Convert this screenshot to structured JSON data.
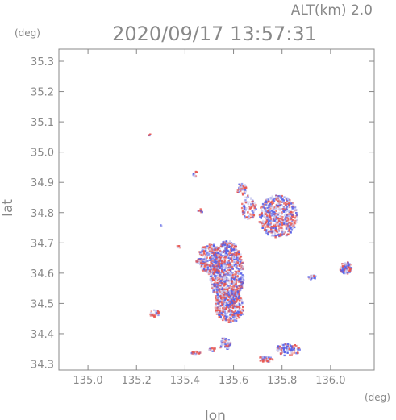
{
  "chart_data": {
    "type": "scatter",
    "title": "2020/09/17 13:57:31",
    "subtitle": "ALT(km) 2.0",
    "xlabel": "lon",
    "ylabel": "lat",
    "xunit": "(deg)",
    "yunit": "(deg)",
    "xlim": [
      134.88,
      136.18
    ],
    "ylim": [
      34.28,
      35.34
    ],
    "xticks": [
      {
        "value": 135.0,
        "label": "135.0"
      },
      {
        "value": 135.2,
        "label": "135.2"
      },
      {
        "value": 135.4,
        "label": "135.4"
      },
      {
        "value": 135.6,
        "label": "135.6"
      },
      {
        "value": 135.8,
        "label": "135.8"
      },
      {
        "value": 136.0,
        "label": "136.0"
      }
    ],
    "yticks": [
      {
        "value": 34.3,
        "label": "34.3"
      },
      {
        "value": 34.4,
        "label": "34.4"
      },
      {
        "value": 34.5,
        "label": "34.5"
      },
      {
        "value": 34.6,
        "label": "34.6"
      },
      {
        "value": 34.7,
        "label": "34.7"
      },
      {
        "value": 34.8,
        "label": "34.8"
      },
      {
        "value": 34.9,
        "label": "34.9"
      },
      {
        "value": 35.0,
        "label": "35.0"
      },
      {
        "value": 35.1,
        "label": "35.1"
      },
      {
        "value": 35.2,
        "label": "35.2"
      },
      {
        "value": 35.3,
        "label": "35.3"
      }
    ],
    "grid": false,
    "colors": {
      "positive": "#e8554f",
      "negative": "#5560e8",
      "neutral": "#c8c8ee",
      "axis": "#888888"
    },
    "clusters": [
      {
        "lon": 135.57,
        "lat": 34.6,
        "rlon": 0.07,
        "rlat": 0.11,
        "n": 900
      },
      {
        "lon": 135.5,
        "lat": 34.65,
        "rlon": 0.05,
        "rlat": 0.05,
        "n": 250
      },
      {
        "lon": 135.58,
        "lat": 34.49,
        "rlon": 0.06,
        "rlat": 0.05,
        "n": 300
      },
      {
        "lon": 135.78,
        "lat": 34.79,
        "rlon": 0.08,
        "rlat": 0.07,
        "n": 550
      },
      {
        "lon": 135.66,
        "lat": 34.82,
        "rlon": 0.03,
        "rlat": 0.04,
        "n": 80
      },
      {
        "lon": 135.63,
        "lat": 34.88,
        "rlon": 0.02,
        "rlat": 0.02,
        "n": 40
      },
      {
        "lon": 135.82,
        "lat": 34.35,
        "rlon": 0.05,
        "rlat": 0.02,
        "n": 90
      },
      {
        "lon": 135.73,
        "lat": 34.32,
        "rlon": 0.03,
        "rlat": 0.01,
        "n": 40
      },
      {
        "lon": 136.06,
        "lat": 34.62,
        "rlon": 0.025,
        "rlat": 0.02,
        "n": 70
      },
      {
        "lon": 135.92,
        "lat": 34.59,
        "rlon": 0.015,
        "rlat": 0.008,
        "n": 20
      },
      {
        "lon": 135.56,
        "lat": 34.37,
        "rlon": 0.025,
        "rlat": 0.02,
        "n": 50
      },
      {
        "lon": 135.27,
        "lat": 34.47,
        "rlon": 0.02,
        "rlat": 0.012,
        "n": 30
      },
      {
        "lon": 135.44,
        "lat": 34.93,
        "rlon": 0.01,
        "rlat": 0.01,
        "n": 12
      },
      {
        "lon": 135.46,
        "lat": 34.64,
        "rlon": 0.02,
        "rlat": 0.01,
        "n": 30
      },
      {
        "lon": 135.44,
        "lat": 34.34,
        "rlon": 0.02,
        "rlat": 0.005,
        "n": 15
      },
      {
        "lon": 135.51,
        "lat": 34.35,
        "rlon": 0.015,
        "rlat": 0.008,
        "n": 15
      },
      {
        "lon": 135.46,
        "lat": 34.81,
        "rlon": 0.01,
        "rlat": 0.01,
        "n": 10
      },
      {
        "lon": 135.25,
        "lat": 35.06,
        "rlon": 0.005,
        "rlat": 0.004,
        "n": 4
      },
      {
        "lon": 135.37,
        "lat": 34.69,
        "rlon": 0.008,
        "rlat": 0.006,
        "n": 6
      },
      {
        "lon": 135.3,
        "lat": 34.76,
        "rlon": 0.005,
        "rlat": 0.005,
        "n": 4
      }
    ]
  }
}
